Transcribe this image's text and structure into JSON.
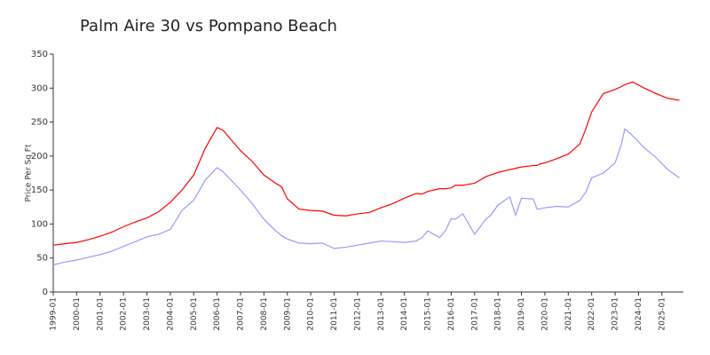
{
  "chart_data": {
    "type": "line",
    "title": "Palm Aire 30 vs Pompano Beach",
    "y_label": "Price Per Sq Ft",
    "x": [
      "1999-01",
      "1999-07",
      "2000-01",
      "2000-07",
      "2001-01",
      "2001-07",
      "2002-01",
      "2002-07",
      "2003-01",
      "2003-07",
      "2004-01",
      "2004-07",
      "2005-01",
      "2005-07",
      "2006-01",
      "2006-04",
      "2006-07",
      "2007-01",
      "2007-07",
      "2008-01",
      "2008-07",
      "2008-10",
      "2009-01",
      "2009-07",
      "2010-01",
      "2010-07",
      "2011-01",
      "2011-07",
      "2012-01",
      "2012-07",
      "2013-01",
      "2013-07",
      "2014-01",
      "2014-07",
      "2014-10",
      "2015-01",
      "2015-07",
      "2015-10",
      "2016-01",
      "2016-03",
      "2016-07",
      "2017-01",
      "2017-07",
      "2017-09",
      "2018-01",
      "2018-07",
      "2018-10",
      "2019-01",
      "2019-07",
      "2019-09",
      "2019-10",
      "2020-01",
      "2020-07",
      "2021-01",
      "2021-07",
      "2021-10",
      "2022-01",
      "2022-07",
      "2023-01",
      "2023-04",
      "2023-06",
      "2023-10",
      "2024-04",
      "2024-10",
      "2025-04",
      "2025-10"
    ],
    "series": [
      {
        "color": "#ff0000",
        "values": [
          69,
          71,
          73,
          77,
          82,
          88,
          96,
          103,
          109,
          118,
          132,
          150,
          172,
          212,
          242,
          238,
          228,
          208,
          192,
          172,
          160,
          155,
          137,
          122,
          120,
          119,
          113,
          112,
          115,
          117,
          124,
          130,
          138,
          145,
          144,
          148,
          152,
          152,
          153,
          157,
          157,
          160,
          170,
          172,
          176,
          180,
          182,
          184,
          186,
          186,
          188,
          190,
          196,
          203,
          218,
          240,
          265,
          292,
          298,
          302,
          305,
          309,
          300,
          292,
          285,
          282
        ]
      },
      {
        "color": "#9999ff",
        "values": [
          40,
          44,
          47,
          51,
          55,
          60,
          67,
          74,
          81,
          85,
          92,
          120,
          135,
          165,
          183,
          177,
          168,
          150,
          130,
          107,
          90,
          83,
          78,
          72,
          71,
          72,
          64,
          66,
          69,
          72,
          75,
          74,
          73,
          75,
          80,
          90,
          80,
          90,
          108,
          107,
          115,
          85,
          108,
          112,
          128,
          140,
          113,
          138,
          137,
          122,
          122,
          124,
          126,
          125,
          135,
          147,
          168,
          175,
          190,
          215,
          240,
          230,
          212,
          198,
          180,
          168
        ]
      }
    ],
    "xlim": [
      "1999-01",
      "2025-12"
    ],
    "xticks": [
      "1999-01",
      "2000-01",
      "2001-01",
      "2002-01",
      "2003-01",
      "2004-01",
      "2005-01",
      "2006-01",
      "2007-01",
      "2008-01",
      "2009-01",
      "2010-01",
      "2011-01",
      "2012-01",
      "2013-01",
      "2014-01",
      "2015-01",
      "2016-01",
      "2017-01",
      "2018-01",
      "2019-01",
      "2020-01",
      "2021-01",
      "2022-01",
      "2023-01",
      "2024-01",
      "2025-01"
    ],
    "ylim": [
      0,
      350
    ],
    "yticks": [
      0,
      50,
      100,
      150,
      200,
      250,
      300,
      350
    ]
  }
}
